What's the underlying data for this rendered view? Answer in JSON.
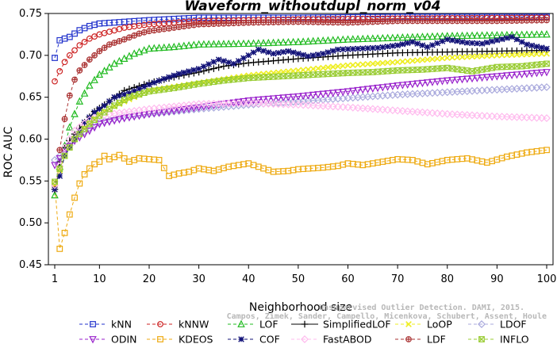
{
  "chart_data": {
    "type": "line",
    "title": "Waveform_withoutdupl_norm_v04",
    "xlabel": "Neighborhood size",
    "ylabel": "ROC AUC",
    "xlim": [
      1,
      100
    ],
    "ylim": [
      0.45,
      0.75
    ],
    "x_ticks": [
      1,
      10,
      20,
      30,
      40,
      50,
      60,
      70,
      80,
      90,
      100
    ],
    "y_ticks": [
      0.45,
      0.5,
      0.55,
      0.6,
      0.65,
      0.7,
      0.75
    ],
    "y_tick_labels": [
      "0.45",
      "0.50",
      "0.55",
      "0.60",
      "0.65",
      "0.70",
      "0.75"
    ],
    "grid": false,
    "legend_position": "bottom",
    "series": [
      {
        "name": "kNN",
        "color": "#2233cc",
        "marker": "square",
        "dash": "4,3",
        "points": [
          [
            1,
            0.697
          ],
          [
            2,
            0.718
          ],
          [
            4,
            0.722
          ],
          [
            6,
            0.73
          ],
          [
            8,
            0.735
          ],
          [
            10,
            0.738
          ],
          [
            15,
            0.74
          ],
          [
            20,
            0.742
          ],
          [
            30,
            0.745
          ],
          [
            50,
            0.745
          ],
          [
            70,
            0.746
          ],
          [
            100,
            0.746
          ]
        ]
      },
      {
        "name": "kNNW",
        "color": "#cc2222",
        "marker": "circle",
        "dash": "4,3",
        "points": [
          [
            1,
            0.669
          ],
          [
            2,
            0.681
          ],
          [
            3,
            0.692
          ],
          [
            4,
            0.7
          ],
          [
            5,
            0.706
          ],
          [
            6,
            0.712
          ],
          [
            8,
            0.72
          ],
          [
            10,
            0.725
          ],
          [
            15,
            0.733
          ],
          [
            20,
            0.737
          ],
          [
            30,
            0.741
          ],
          [
            50,
            0.743
          ],
          [
            70,
            0.744
          ],
          [
            100,
            0.745
          ]
        ]
      },
      {
        "name": "LOF",
        "color": "#22bb22",
        "marker": "triangle",
        "dash": "4,3",
        "points": [
          [
            1,
            0.533
          ],
          [
            2,
            0.567
          ],
          [
            3,
            0.592
          ],
          [
            4,
            0.614
          ],
          [
            5,
            0.63
          ],
          [
            6,
            0.645
          ],
          [
            8,
            0.664
          ],
          [
            10,
            0.677
          ],
          [
            13,
            0.69
          ],
          [
            17,
            0.702
          ],
          [
            20,
            0.708
          ],
          [
            25,
            0.71
          ],
          [
            30,
            0.713
          ],
          [
            40,
            0.714
          ],
          [
            50,
            0.716
          ],
          [
            60,
            0.719
          ],
          [
            70,
            0.721
          ],
          [
            80,
            0.723
          ],
          [
            90,
            0.724
          ],
          [
            100,
            0.725
          ]
        ]
      },
      {
        "name": "SimplifiedLOF",
        "color": "#000000",
        "marker": "plus",
        "dash": "",
        "points": [
          [
            1,
            0.54
          ],
          [
            2,
            0.573
          ],
          [
            3,
            0.59
          ],
          [
            5,
            0.606
          ],
          [
            7,
            0.62
          ],
          [
            9,
            0.633
          ],
          [
            12,
            0.645
          ],
          [
            15,
            0.658
          ],
          [
            20,
            0.667
          ],
          [
            25,
            0.674
          ],
          [
            30,
            0.68
          ],
          [
            35,
            0.687
          ],
          [
            40,
            0.691
          ],
          [
            50,
            0.696
          ],
          [
            60,
            0.7
          ],
          [
            70,
            0.703
          ],
          [
            80,
            0.704
          ],
          [
            90,
            0.705
          ],
          [
            100,
            0.706
          ]
        ]
      },
      {
        "name": "LoOP",
        "color": "#eeee22",
        "marker": "x",
        "dash": "4,3",
        "points": [
          [
            1,
            0.545
          ],
          [
            3,
            0.58
          ],
          [
            5,
            0.6
          ],
          [
            8,
            0.62
          ],
          [
            10,
            0.63
          ],
          [
            15,
            0.645
          ],
          [
            20,
            0.658
          ],
          [
            30,
            0.667
          ],
          [
            40,
            0.676
          ],
          [
            50,
            0.682
          ],
          [
            60,
            0.688
          ],
          [
            70,
            0.692
          ],
          [
            80,
            0.697
          ],
          [
            90,
            0.7
          ],
          [
            100,
            0.702
          ]
        ]
      },
      {
        "name": "LDOF",
        "color": "#aaaadd",
        "marker": "diamond",
        "dash": "4,3",
        "points": [
          [
            1,
            0.575
          ],
          [
            3,
            0.585
          ],
          [
            5,
            0.6
          ],
          [
            8,
            0.613
          ],
          [
            10,
            0.62
          ],
          [
            15,
            0.626
          ],
          [
            20,
            0.63
          ],
          [
            30,
            0.636
          ],
          [
            40,
            0.641
          ],
          [
            50,
            0.645
          ],
          [
            60,
            0.649
          ],
          [
            70,
            0.653
          ],
          [
            80,
            0.656
          ],
          [
            90,
            0.659
          ],
          [
            100,
            0.662
          ]
        ]
      },
      {
        "name": "ODIN",
        "color": "#9922cc",
        "marker": "triangle-down",
        "dash": "4,3",
        "points": [
          [
            1,
            0.569
          ],
          [
            3,
            0.585
          ],
          [
            5,
            0.598
          ],
          [
            8,
            0.61
          ],
          [
            10,
            0.618
          ],
          [
            15,
            0.625
          ],
          [
            20,
            0.63
          ],
          [
            30,
            0.638
          ],
          [
            40,
            0.646
          ],
          [
            50,
            0.651
          ],
          [
            60,
            0.657
          ],
          [
            70,
            0.664
          ],
          [
            80,
            0.67
          ],
          [
            90,
            0.675
          ],
          [
            100,
            0.68
          ]
        ]
      },
      {
        "name": "KDEOS",
        "color": "#eeaa11",
        "marker": "square",
        "dash": "4,3",
        "points": [
          [
            1,
            0.547
          ],
          [
            2,
            0.469
          ],
          [
            3,
            0.488
          ],
          [
            4,
            0.51
          ],
          [
            5,
            0.53
          ],
          [
            6,
            0.547
          ],
          [
            7,
            0.558
          ],
          [
            8,
            0.565
          ],
          [
            9,
            0.57
          ],
          [
            10,
            0.573
          ],
          [
            11,
            0.58
          ],
          [
            12,
            0.576
          ],
          [
            14,
            0.581
          ],
          [
            16,
            0.573
          ],
          [
            18,
            0.577
          ],
          [
            20,
            0.576
          ],
          [
            22,
            0.575
          ],
          [
            24,
            0.556
          ],
          [
            26,
            0.559
          ],
          [
            28,
            0.561
          ],
          [
            30,
            0.565
          ],
          [
            33,
            0.562
          ],
          [
            36,
            0.567
          ],
          [
            38,
            0.569
          ],
          [
            40,
            0.571
          ],
          [
            42,
            0.567
          ],
          [
            45,
            0.561
          ],
          [
            48,
            0.562
          ],
          [
            50,
            0.564
          ],
          [
            55,
            0.566
          ],
          [
            58,
            0.568
          ],
          [
            60,
            0.571
          ],
          [
            63,
            0.569
          ],
          [
            66,
            0.572
          ],
          [
            70,
            0.576
          ],
          [
            73,
            0.575
          ],
          [
            76,
            0.57
          ],
          [
            80,
            0.575
          ],
          [
            84,
            0.577
          ],
          [
            88,
            0.572
          ],
          [
            92,
            0.579
          ],
          [
            96,
            0.584
          ],
          [
            100,
            0.587
          ]
        ]
      },
      {
        "name": "COF",
        "color": "#111177",
        "marker": "star",
        "dash": "4,3",
        "points": [
          [
            1,
            0.54
          ],
          [
            2,
            0.556
          ],
          [
            3,
            0.58
          ],
          [
            5,
            0.6
          ],
          [
            7,
            0.62
          ],
          [
            9,
            0.632
          ],
          [
            11,
            0.64
          ],
          [
            13,
            0.65
          ],
          [
            16,
            0.655
          ],
          [
            18,
            0.66
          ],
          [
            20,
            0.665
          ],
          [
            23,
            0.672
          ],
          [
            26,
            0.678
          ],
          [
            30,
            0.684
          ],
          [
            34,
            0.695
          ],
          [
            37,
            0.69
          ],
          [
            40,
            0.7
          ],
          [
            42,
            0.707
          ],
          [
            45,
            0.702
          ],
          [
            48,
            0.705
          ],
          [
            52,
            0.699
          ],
          [
            55,
            0.702
          ],
          [
            58,
            0.707
          ],
          [
            62,
            0.708
          ],
          [
            66,
            0.709
          ],
          [
            70,
            0.712
          ],
          [
            73,
            0.716
          ],
          [
            76,
            0.71
          ],
          [
            80,
            0.719
          ],
          [
            84,
            0.715
          ],
          [
            87,
            0.714
          ],
          [
            90,
            0.718
          ],
          [
            93,
            0.722
          ],
          [
            96,
            0.713
          ],
          [
            100,
            0.708
          ]
        ]
      },
      {
        "name": "FastABOD",
        "color": "#ffbbee",
        "marker": "diamond",
        "dash": "4,3",
        "points": [
          [
            1,
            0.545
          ],
          [
            3,
            0.59
          ],
          [
            5,
            0.61
          ],
          [
            8,
            0.623
          ],
          [
            10,
            0.628
          ],
          [
            15,
            0.632
          ],
          [
            20,
            0.636
          ],
          [
            30,
            0.642
          ],
          [
            40,
            0.643
          ],
          [
            50,
            0.641
          ],
          [
            60,
            0.638
          ],
          [
            70,
            0.634
          ],
          [
            80,
            0.63
          ],
          [
            90,
            0.627
          ],
          [
            100,
            0.625
          ]
        ]
      },
      {
        "name": "LDF",
        "color": "#aa3333",
        "marker": "circle-plus",
        "dash": "4,3",
        "points": [
          [
            2,
            0.587
          ],
          [
            3,
            0.624
          ],
          [
            4,
            0.652
          ],
          [
            5,
            0.671
          ],
          [
            6,
            0.682
          ],
          [
            8,
            0.695
          ],
          [
            10,
            0.705
          ],
          [
            12,
            0.713
          ],
          [
            15,
            0.719
          ],
          [
            18,
            0.726
          ],
          [
            20,
            0.729
          ],
          [
            25,
            0.733
          ],
          [
            30,
            0.737
          ],
          [
            40,
            0.739
          ],
          [
            50,
            0.74
          ],
          [
            60,
            0.739
          ],
          [
            70,
            0.741
          ],
          [
            80,
            0.741
          ],
          [
            90,
            0.741
          ],
          [
            100,
            0.742
          ]
        ]
      },
      {
        "name": "INFLO",
        "color": "#99cc33",
        "marker": "square-x",
        "dash": "4,3",
        "points": [
          [
            1,
            0.549
          ],
          [
            3,
            0.58
          ],
          [
            5,
            0.6
          ],
          [
            8,
            0.618
          ],
          [
            10,
            0.628
          ],
          [
            13,
            0.64
          ],
          [
            16,
            0.65
          ],
          [
            20,
            0.657
          ],
          [
            25,
            0.661
          ],
          [
            30,
            0.666
          ],
          [
            35,
            0.67
          ],
          [
            40,
            0.673
          ],
          [
            50,
            0.676
          ],
          [
            60,
            0.679
          ],
          [
            65,
            0.68
          ],
          [
            70,
            0.682
          ],
          [
            75,
            0.683
          ],
          [
            80,
            0.685
          ],
          [
            85,
            0.681
          ],
          [
            90,
            0.686
          ],
          [
            95,
            0.687
          ],
          [
            100,
            0.69
          ]
        ]
      }
    ],
    "legend_order": [
      "kNN",
      "kNNW",
      "LOF",
      "SimplifiedLOF",
      "LoOP",
      "LDOF",
      "ODIN",
      "KDEOS",
      "COF",
      "FastABOD",
      "LDF",
      "INFLO"
    ]
  },
  "watermark": {
    "line1": "Campos, Zimek, Sander, Campello, Micenkova, Schubert, Assent, Houle",
    "line2": "Unsupervised Outlier Detection. DAMI, 2015."
  }
}
